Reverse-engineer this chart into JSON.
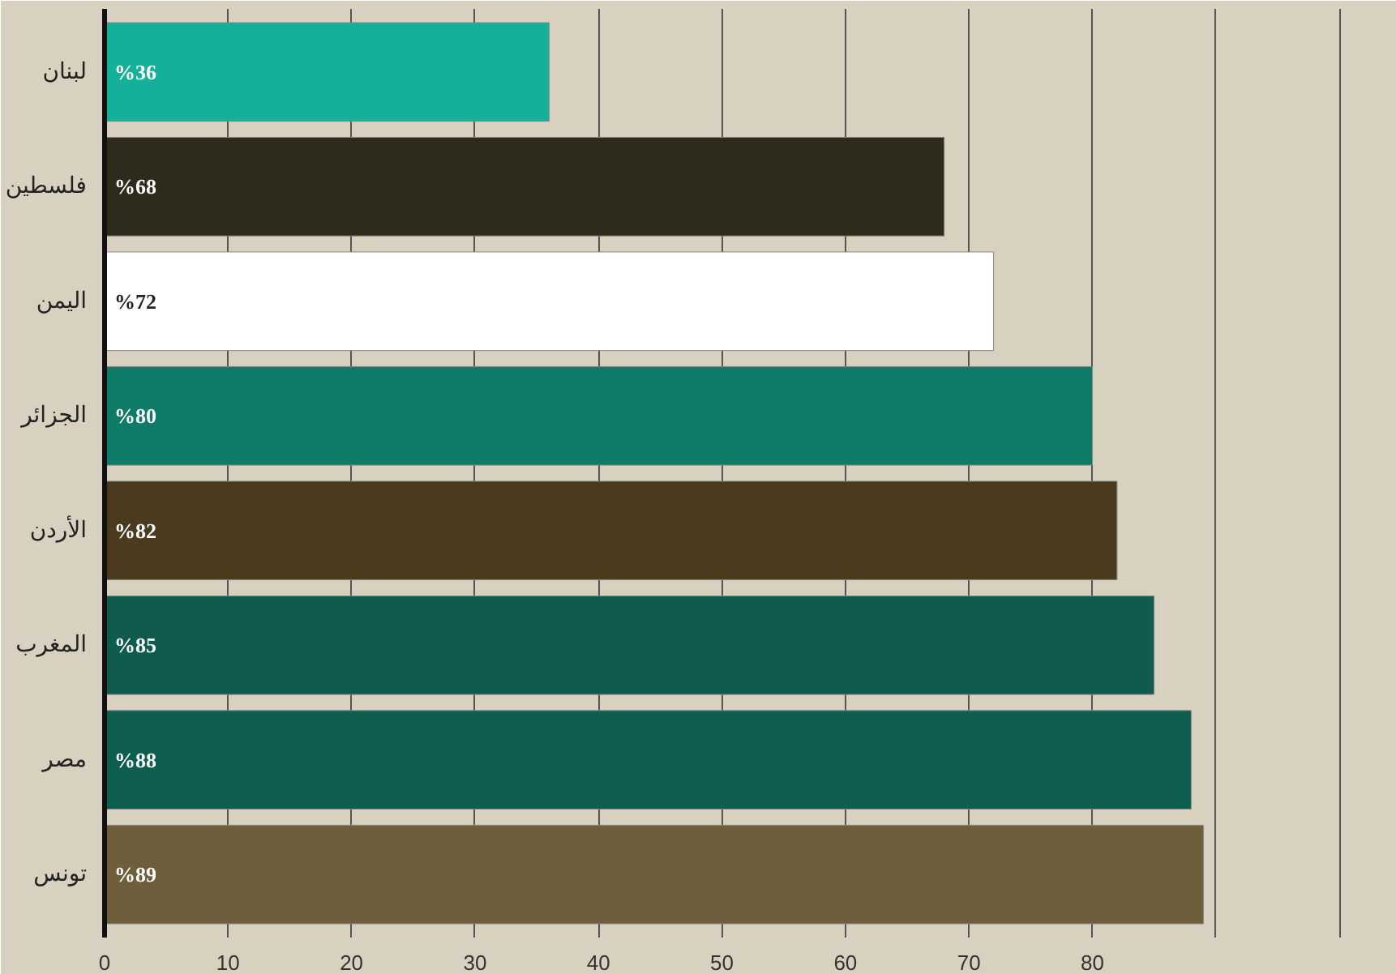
{
  "chart_data": {
    "type": "bar",
    "orientation": "horizontal",
    "categories": [
      "لبنان",
      "فلسطين",
      "اليمن",
      "الجزائر",
      "الأردن",
      "المغرب",
      "مصر",
      "تونس"
    ],
    "values": [
      36,
      68,
      72,
      80,
      82,
      85,
      88,
      89
    ],
    "colors": [
      "#14b09a",
      "#2e2a1c",
      "#ffffff",
      "#0e7a68",
      "#4a3a1e",
      "#0f5c4e",
      "#0e5e50",
      "#6e5e3c"
    ],
    "value_labels": [
      "%36",
      "%68",
      "%72",
      "%80",
      "%82",
      "%85",
      "%88",
      "%89"
    ],
    "xlim": [
      0,
      104
    ],
    "xticks": [
      0,
      10,
      20,
      30,
      40,
      50,
      60,
      70,
      80,
      {
        "value": 90,
        "label": null
      },
      {
        "value": 100,
        "label": null
      }
    ],
    "grid": "x"
  }
}
